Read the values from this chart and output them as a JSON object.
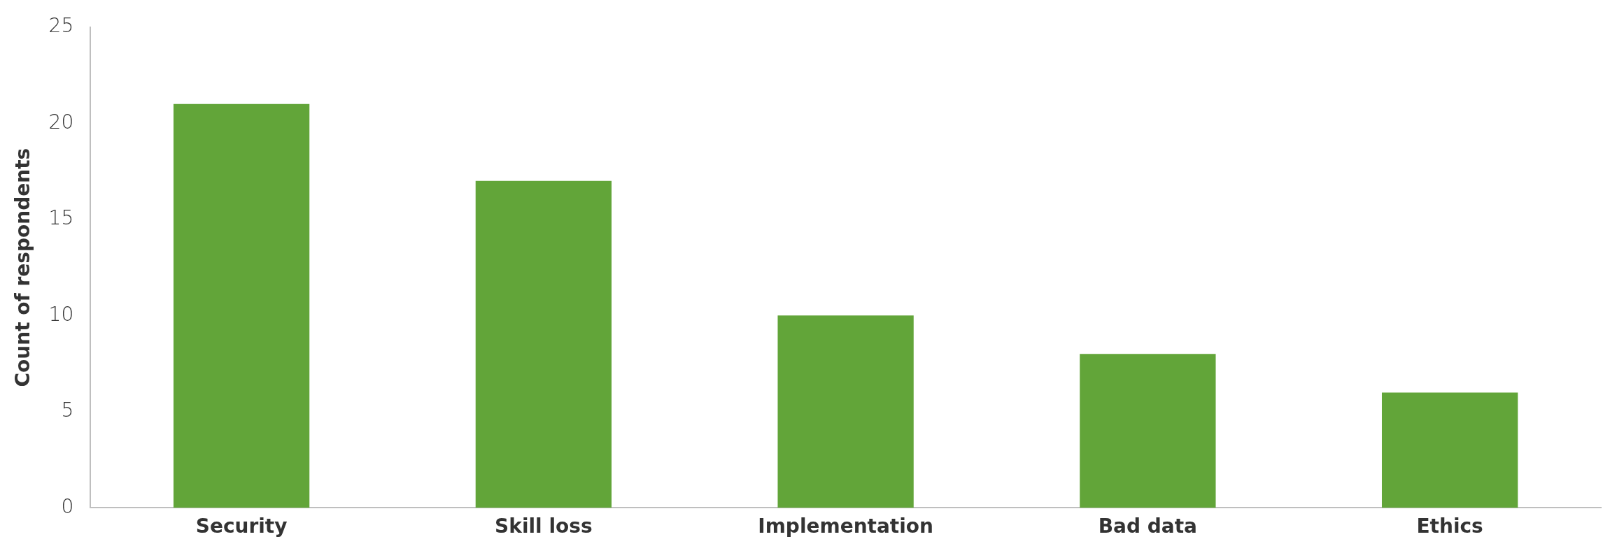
{
  "chart_data": {
    "type": "bar",
    "ylabel": "Count of respondents",
    "categories": [
      "Security",
      "Skill loss",
      "Implementation",
      "Bad data",
      "Ethics"
    ],
    "values": [
      21,
      17,
      10,
      8,
      6
    ],
    "color": "#62a539",
    "ylim": [
      0,
      25
    ],
    "yticks": [
      0,
      5,
      10,
      15,
      20,
      25
    ],
    "grid": false,
    "legend": false
  }
}
